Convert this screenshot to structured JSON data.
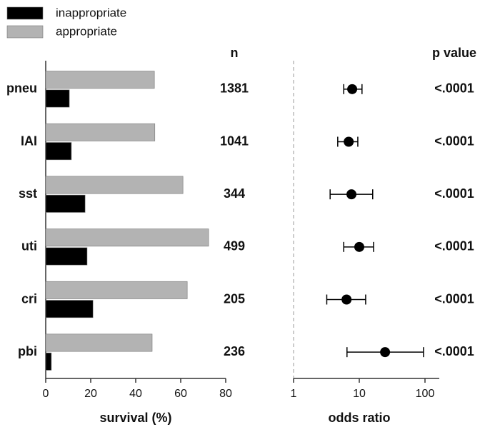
{
  "chart_data": [
    {
      "type": "bar",
      "orientation": "horizontal",
      "categories": [
        "pneu",
        "IAI",
        "sst",
        "uti",
        "cri",
        "pbi"
      ],
      "series": [
        {
          "name": "inappropriate",
          "color": "#000000",
          "values": [
            10.5,
            11.4,
            17.5,
            18.4,
            21,
            2.5
          ]
        },
        {
          "name": "appropriate",
          "color": "#b3b3b3",
          "values": [
            48.3,
            48.5,
            61,
            72.4,
            62.9,
            47.3
          ]
        }
      ],
      "xlabel": "survival (%)",
      "xlim": [
        0,
        80
      ],
      "xticks": [
        0,
        20,
        40,
        60,
        80
      ],
      "legend": "top-left"
    },
    {
      "type": "forest",
      "log_x": true,
      "color": "#000000",
      "values": [
        7.8,
        6.9,
        7.6,
        10,
        6.4,
        24.7
      ],
      "ci_low": [
        5.8,
        4.7,
        3.6,
        5.8,
        3.2,
        6.5
      ],
      "ci_high": [
        11,
        9.5,
        16,
        16.5,
        12.5,
        95
      ],
      "xlabel": "odds ratio",
      "xlim": [
        1,
        165
      ],
      "xticks": [
        1,
        10,
        100
      ],
      "n_header": "n",
      "n": [
        1381,
        1041,
        344,
        499,
        205,
        236
      ],
      "p_header": "p value",
      "p_values": [
        "<.0001",
        "<.0001",
        "<.0001",
        "<.0001",
        "<.0001",
        "<.0001"
      ]
    }
  ]
}
